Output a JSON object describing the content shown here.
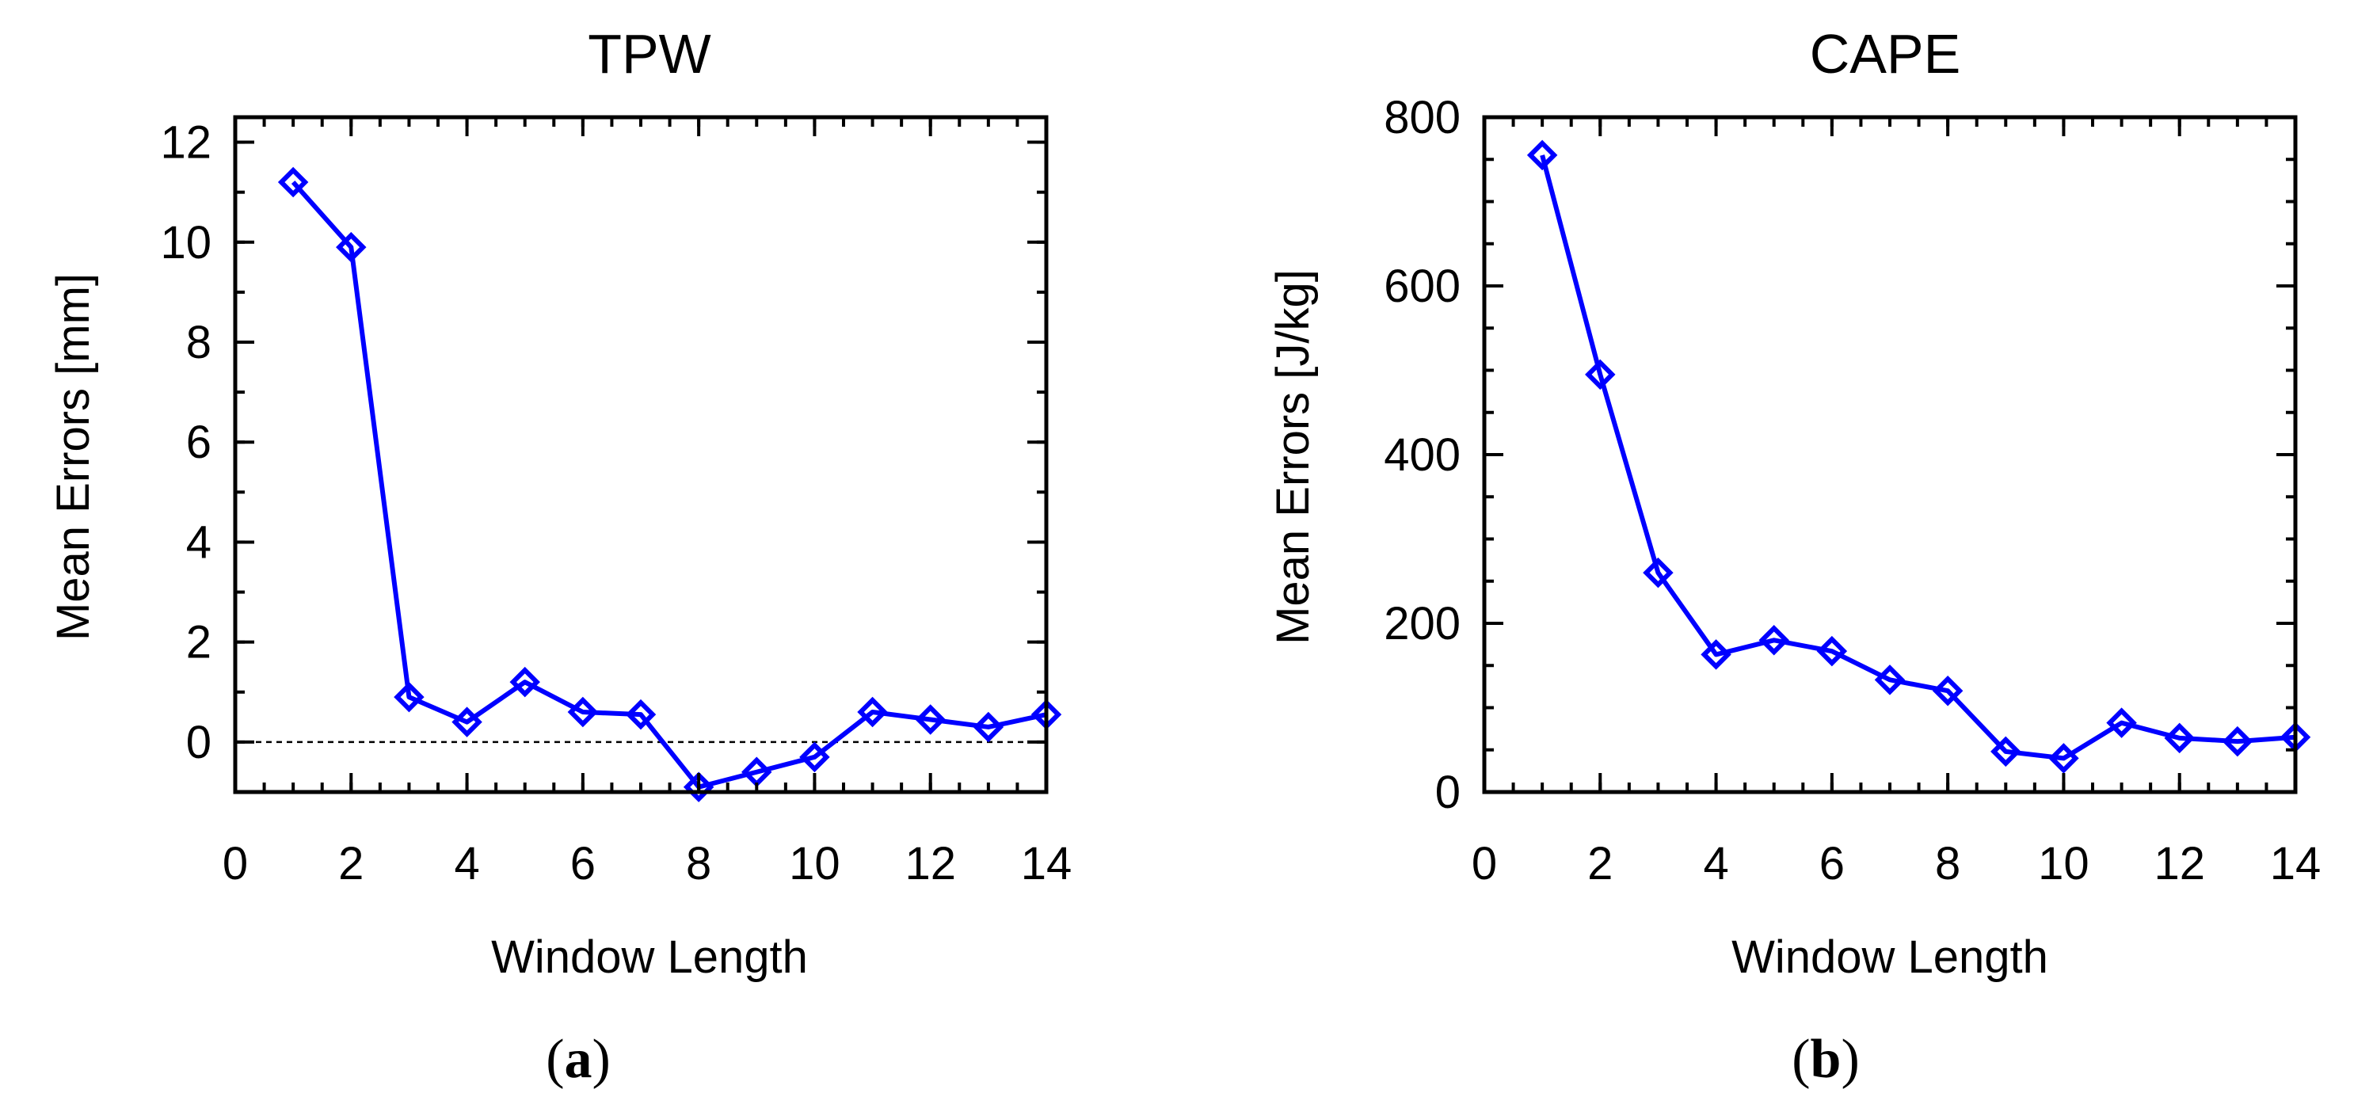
{
  "figure": {
    "panel_labels": [
      "a",
      "b"
    ]
  },
  "colors": {
    "series": "#0000ff",
    "axes": "#000000"
  },
  "chart_data": [
    {
      "type": "line",
      "title": "TPW",
      "xlabel": "Window Length",
      "ylabel": "Mean Errors [mm]",
      "xlim": [
        0,
        14
      ],
      "ylim": [
        -1,
        12.5
      ],
      "xticks": [
        0,
        2,
        4,
        6,
        8,
        10,
        12,
        14
      ],
      "yticks": [
        0,
        2,
        4,
        6,
        8,
        10,
        12
      ],
      "x_minor_step": 0.5,
      "y_minor_step": 1,
      "zero_line": true,
      "marker": "diamond",
      "series": [
        {
          "name": "TPW",
          "x": [
            1,
            2,
            3,
            4,
            5,
            6,
            7,
            8,
            9,
            10,
            11,
            12,
            13,
            14
          ],
          "values": [
            11.2,
            9.9,
            0.9,
            0.4,
            1.2,
            0.6,
            0.55,
            -0.9,
            -0.6,
            -0.3,
            0.6,
            0.45,
            0.3,
            0.55
          ]
        }
      ]
    },
    {
      "type": "line",
      "title": "CAPE",
      "xlabel": "Window Length",
      "ylabel": "Mean Errors [J/kg]",
      "xlim": [
        0,
        14
      ],
      "ylim": [
        0,
        800
      ],
      "xticks": [
        0,
        2,
        4,
        6,
        8,
        10,
        12,
        14
      ],
      "yticks": [
        0,
        200,
        400,
        600,
        800
      ],
      "x_minor_step": 0.5,
      "y_minor_step": 50,
      "zero_line": false,
      "marker": "diamond",
      "series": [
        {
          "name": "CAPE",
          "x": [
            1,
            2,
            3,
            4,
            5,
            6,
            7,
            8,
            9,
            10,
            11,
            12,
            13,
            14
          ],
          "values": [
            755,
            495,
            260,
            163,
            180,
            167,
            133,
            120,
            48,
            40,
            82,
            64,
            60,
            65
          ]
        }
      ]
    }
  ]
}
